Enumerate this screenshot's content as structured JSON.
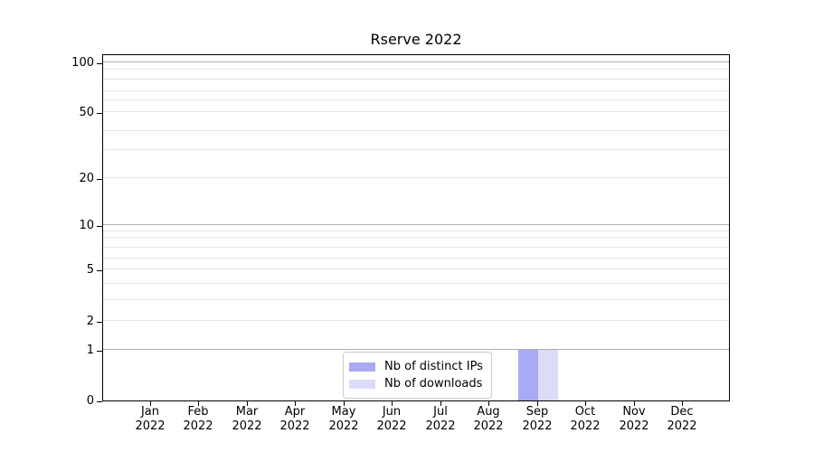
{
  "chart_data": {
    "type": "bar",
    "title": "Rserve 2022",
    "categories": [
      {
        "month": "Jan",
        "year": "2022"
      },
      {
        "month": "Feb",
        "year": "2022"
      },
      {
        "month": "Mar",
        "year": "2022"
      },
      {
        "month": "Apr",
        "year": "2022"
      },
      {
        "month": "May",
        "year": "2022"
      },
      {
        "month": "Jun",
        "year": "2022"
      },
      {
        "month": "Jul",
        "year": "2022"
      },
      {
        "month": "Aug",
        "year": "2022"
      },
      {
        "month": "Sep",
        "year": "2022"
      },
      {
        "month": "Oct",
        "year": "2022"
      },
      {
        "month": "Nov",
        "year": "2022"
      },
      {
        "month": "Dec",
        "year": "2022"
      }
    ],
    "series": [
      {
        "name": "Nb of distinct IPs",
        "color": "#a9a9f4",
        "values": [
          0,
          0,
          0,
          0,
          0,
          0,
          0,
          0,
          1,
          0,
          0,
          0
        ]
      },
      {
        "name": "Nb of downloads",
        "color": "#dcdcf8",
        "values": [
          0,
          0,
          0,
          0,
          0,
          0,
          0,
          0,
          1,
          0,
          0,
          0
        ]
      }
    ],
    "y_axis": {
      "scale": "log-like with linear segment below 1",
      "ticks": [
        {
          "label": "0",
          "value": 0,
          "pos": 0.0,
          "emph": false
        },
        {
          "label": "1",
          "value": 1,
          "pos": 0.1458,
          "emph": true
        },
        {
          "label": "2",
          "value": 2,
          "pos": 0.2292,
          "emph": false
        },
        {
          "label": "5",
          "value": 5,
          "pos": 0.3776,
          "emph": false
        },
        {
          "label": "10",
          "value": 10,
          "pos": 0.5052,
          "emph": true
        },
        {
          "label": "20",
          "value": 20,
          "pos": 0.6406,
          "emph": false
        },
        {
          "label": "50",
          "value": 50,
          "pos": 0.8307,
          "emph": false
        },
        {
          "label": "100",
          "value": 100,
          "pos": 0.974,
          "emph": true
        }
      ],
      "minor_gridlines": [
        {
          "value": 3,
          "pos": 0.2891
        },
        {
          "value": 4,
          "pos": 0.3359
        },
        {
          "value": 6,
          "pos": 0.4089
        },
        {
          "value": 7,
          "pos": 0.4401
        },
        {
          "value": 8,
          "pos": 0.4688
        },
        {
          "value": 9,
          "pos": 0.487
        },
        {
          "value": 30,
          "pos": 0.7214
        },
        {
          "value": 40,
          "pos": 0.776
        },
        {
          "value": 60,
          "pos": 0.8646
        },
        {
          "value": 70,
          "pos": 0.8906
        },
        {
          "value": 80,
          "pos": 0.9245
        },
        {
          "value": 90,
          "pos": 0.9531
        }
      ]
    },
    "legend": {
      "position": "lower-center",
      "entries": [
        "Nb of distinct IPs",
        "Nb of downloads"
      ]
    },
    "grid": true,
    "colors": {
      "grid_major": "#b0b0b0",
      "grid_minor": "#e6e6e6",
      "spine": "#000000",
      "background": "#ffffff",
      "text": "#000000"
    }
  }
}
